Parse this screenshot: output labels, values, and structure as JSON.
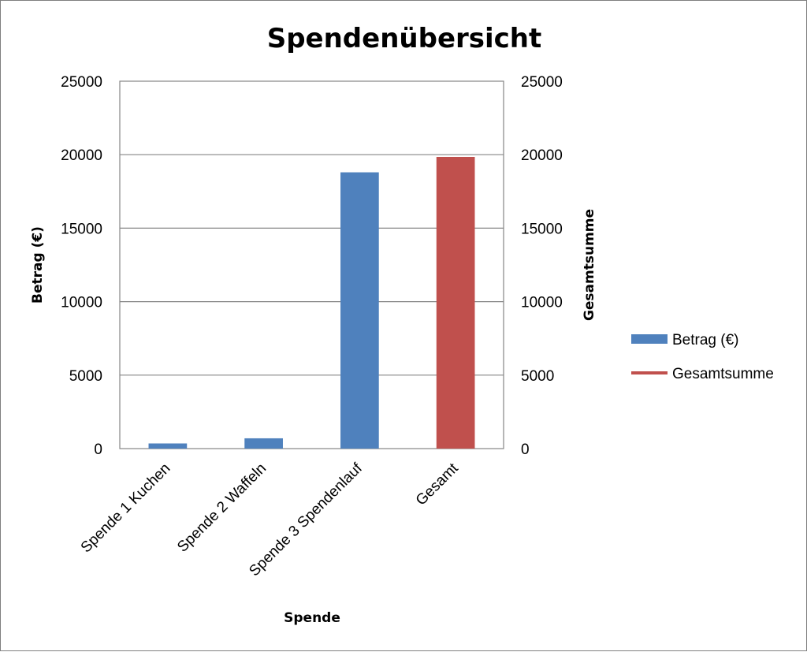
{
  "chart_data": {
    "type": "bar",
    "title": "Spendenübersicht",
    "xlabel": "Spende",
    "ylabel": "Betrag (€)",
    "y2label": "Gesamtsumme",
    "ylim": [
      0,
      25000
    ],
    "y2lim": [
      0,
      25000
    ],
    "yticks": [
      "0",
      "5000",
      "10000",
      "15000",
      "20000",
      "25000"
    ],
    "y2ticks": [
      "0",
      "5000",
      "10000",
      "15000",
      "20000",
      "25000"
    ],
    "grid": true,
    "legend_position": "right",
    "categories": [
      "Spende 1 Kuchen",
      "Spende 2 Waffeln",
      "Spende 3 Spendenlauf",
      "Gesamt"
    ],
    "series": [
      {
        "name": "Betrag (€)",
        "type": "bar",
        "color": "#4f81bd",
        "values": [
          350,
          700,
          18800,
          null
        ]
      },
      {
        "name": "Gesamtsumme",
        "type": "line",
        "color": "#c0504d",
        "values": [
          null,
          null,
          null,
          19850
        ]
      }
    ]
  }
}
